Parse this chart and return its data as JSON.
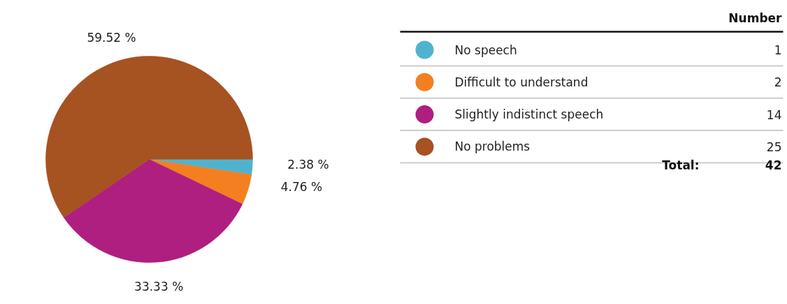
{
  "chart_data": {
    "type": "pie",
    "categories": [
      "No speech",
      "Difficult to understand",
      "Slightly indistinct speech",
      "No problems"
    ],
    "values": [
      2.38,
      4.76,
      33.33,
      59.52
    ],
    "colors": [
      "#4fb3cf",
      "#f47f20",
      "#ae1f80",
      "#a65221"
    ],
    "value_labels": [
      "2.38 %",
      "4.76 %",
      "33.33 %",
      "59.52 %"
    ],
    "legend": "right",
    "annotations": [
      "Number",
      "Total:",
      "42",
      "1",
      "2",
      "14",
      "25"
    ]
  }
}
